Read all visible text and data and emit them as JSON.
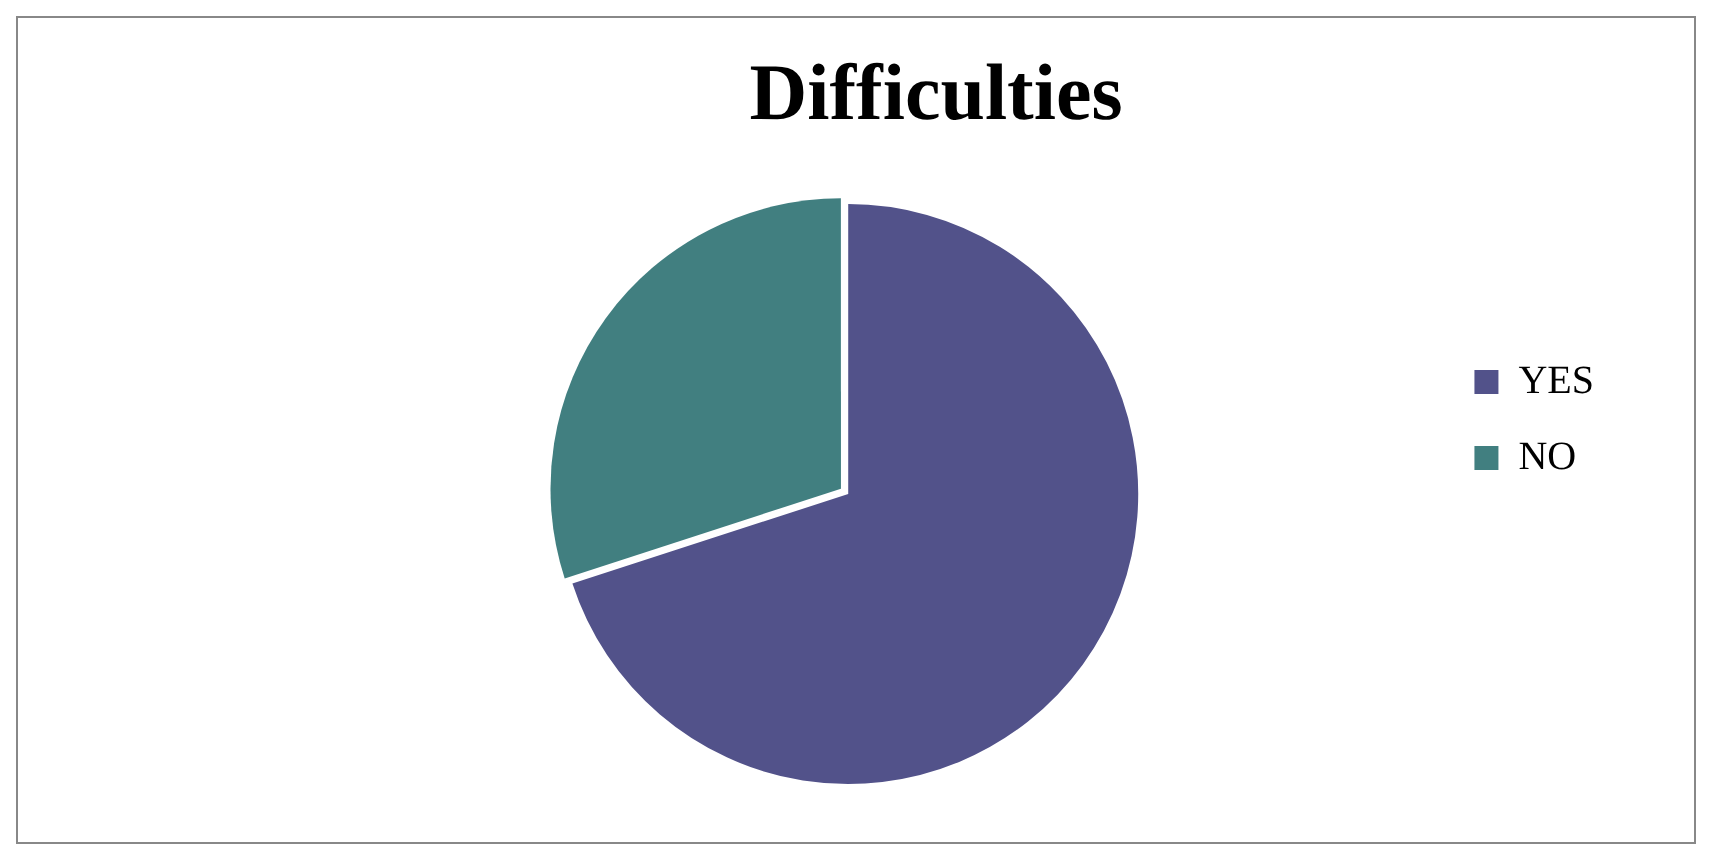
{
  "chart_data": {
    "type": "pie",
    "title": "Difficulties",
    "categories": [
      "YES",
      "NO"
    ],
    "values": [
      70,
      30
    ],
    "colors": [
      "#52528a",
      "#417f80"
    ],
    "legend": "right"
  }
}
